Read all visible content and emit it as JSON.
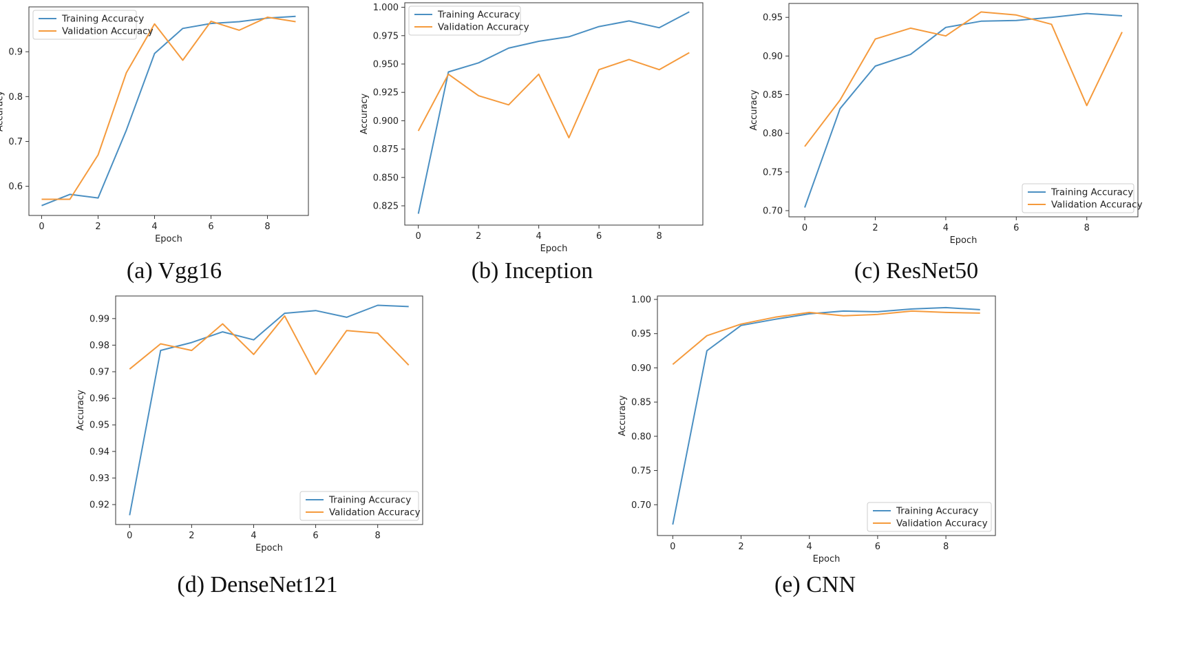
{
  "colors": {
    "training": "#4a8fc2",
    "validation": "#f59a3c",
    "axis": "#333333",
    "legend_border": "#cccccc"
  },
  "chart_data": [
    {
      "id": "vgg16",
      "type": "line",
      "caption": "(a) Vgg16",
      "xlabel": "Epoch",
      "ylabel": "Accuracy",
      "xlim": [
        -0.45,
        9.45
      ],
      "ylim": [
        0.535,
        1.0
      ],
      "xticks": [
        0,
        2,
        4,
        6,
        8
      ],
      "xtick_labels": [
        "0",
        "2",
        "4",
        "6",
        "8"
      ],
      "yticks": [
        0.6,
        0.7,
        0.8,
        0.9
      ],
      "ytick_labels": [
        "0.6",
        "0.7",
        "0.8",
        "0.9"
      ],
      "legend_loc": "upper-left",
      "x": [
        0,
        1,
        2,
        3,
        4,
        5,
        6,
        7,
        8,
        9
      ],
      "series": [
        {
          "name": "Training Accuracy",
          "color_key": "training",
          "values": [
            0.557,
            0.582,
            0.574,
            0.725,
            0.896,
            0.952,
            0.963,
            0.967,
            0.975,
            0.979
          ]
        },
        {
          "name": "Validation Accuracy",
          "color_key": "validation",
          "values": [
            0.571,
            0.571,
            0.67,
            0.853,
            0.962,
            0.881,
            0.968,
            0.948,
            0.977,
            0.967
          ]
        }
      ]
    },
    {
      "id": "inception",
      "type": "line",
      "caption": "(b) Inception",
      "xlabel": "Epoch",
      "ylabel": "Accuracy",
      "xlim": [
        -0.45,
        9.45
      ],
      "ylim": [
        0.808,
        1.004
      ],
      "xticks": [
        0,
        2,
        4,
        6,
        8
      ],
      "xtick_labels": [
        "0",
        "2",
        "4",
        "6",
        "8"
      ],
      "yticks": [
        0.825,
        0.85,
        0.875,
        0.9,
        0.925,
        0.95,
        0.975,
        1.0
      ],
      "ytick_labels": [
        "0.825",
        "0.850",
        "0.875",
        "0.900",
        "0.925",
        "0.950",
        "0.975",
        "1.000"
      ],
      "legend_loc": "upper-left",
      "x": [
        0,
        1,
        2,
        3,
        4,
        5,
        6,
        7,
        8,
        9
      ],
      "series": [
        {
          "name": "Training Accuracy",
          "color_key": "training",
          "values": [
            0.818,
            0.943,
            0.951,
            0.964,
            0.97,
            0.974,
            0.983,
            0.988,
            0.982,
            0.996
          ]
        },
        {
          "name": "Validation Accuracy",
          "color_key": "validation",
          "values": [
            0.891,
            0.941,
            0.922,
            0.914,
            0.941,
            0.885,
            0.945,
            0.954,
            0.945,
            0.96
          ]
        }
      ]
    },
    {
      "id": "resnet50",
      "type": "line",
      "caption": "(c) ResNet50",
      "xlabel": "Epoch",
      "ylabel": "Accuracy",
      "xlim": [
        -0.45,
        9.45
      ],
      "ylim": [
        0.692,
        0.968
      ],
      "xticks": [
        0,
        2,
        4,
        6,
        8
      ],
      "xtick_labels": [
        "0",
        "2",
        "4",
        "6",
        "8"
      ],
      "yticks": [
        0.7,
        0.75,
        0.8,
        0.85,
        0.9,
        0.95
      ],
      "ytick_labels": [
        "0.70",
        "0.75",
        "0.80",
        "0.85",
        "0.90",
        "0.95"
      ],
      "legend_loc": "lower-right",
      "x": [
        0,
        1,
        2,
        3,
        4,
        5,
        6,
        7,
        8,
        9
      ],
      "series": [
        {
          "name": "Training Accuracy",
          "color_key": "training",
          "values": [
            0.704,
            0.832,
            0.887,
            0.902,
            0.937,
            0.945,
            0.946,
            0.95,
            0.955,
            0.952
          ]
        },
        {
          "name": "Validation Accuracy",
          "color_key": "validation",
          "values": [
            0.783,
            0.843,
            0.922,
            0.936,
            0.926,
            0.957,
            0.953,
            0.941,
            0.836,
            0.931
          ]
        }
      ]
    },
    {
      "id": "densenet121",
      "type": "line",
      "caption": "(d) DenseNet121",
      "xlabel": "Epoch",
      "ylabel": "Accuracy",
      "xlim": [
        -0.45,
        9.45
      ],
      "ylim": [
        0.9125,
        0.9985
      ],
      "xticks": [
        0,
        2,
        4,
        6,
        8
      ],
      "xtick_labels": [
        "0",
        "2",
        "4",
        "6",
        "8"
      ],
      "yticks": [
        0.92,
        0.93,
        0.94,
        0.95,
        0.96,
        0.97,
        0.98,
        0.99
      ],
      "ytick_labels": [
        "0.92",
        "0.93",
        "0.94",
        "0.95",
        "0.96",
        "0.97",
        "0.98",
        "0.99"
      ],
      "legend_loc": "lower-right",
      "x": [
        0,
        1,
        2,
        3,
        4,
        5,
        6,
        7,
        8,
        9
      ],
      "series": [
        {
          "name": "Training Accuracy",
          "color_key": "training",
          "values": [
            0.916,
            0.978,
            0.981,
            0.985,
            0.982,
            0.992,
            0.993,
            0.9905,
            0.995,
            0.9945
          ]
        },
        {
          "name": "Validation Accuracy",
          "color_key": "validation",
          "values": [
            0.971,
            0.9805,
            0.978,
            0.988,
            0.9765,
            0.991,
            0.969,
            0.9855,
            0.9845,
            0.9725
          ]
        }
      ]
    },
    {
      "id": "cnn",
      "type": "line",
      "caption": "(e) CNN",
      "xlabel": "Epoch",
      "ylabel": "Accuracy",
      "xlim": [
        -0.45,
        9.45
      ],
      "ylim": [
        0.655,
        1.005
      ],
      "xticks": [
        0,
        2,
        4,
        6,
        8
      ],
      "xtick_labels": [
        "0",
        "2",
        "4",
        "6",
        "8"
      ],
      "yticks": [
        0.7,
        0.75,
        0.8,
        0.85,
        0.9,
        0.95,
        1.0
      ],
      "ytick_labels": [
        "0.70",
        "0.75",
        "0.80",
        "0.85",
        "0.90",
        "0.95",
        "1.00"
      ],
      "legend_loc": "lower-right",
      "x": [
        0,
        1,
        2,
        3,
        4,
        5,
        6,
        7,
        8,
        9
      ],
      "series": [
        {
          "name": "Training Accuracy",
          "color_key": "training",
          "values": [
            0.671,
            0.925,
            0.962,
            0.971,
            0.979,
            0.983,
            0.982,
            0.986,
            0.988,
            0.985
          ]
        },
        {
          "name": "Validation Accuracy",
          "color_key": "validation",
          "values": [
            0.905,
            0.947,
            0.964,
            0.974,
            0.981,
            0.976,
            0.978,
            0.983,
            0.981,
            0.98
          ]
        }
      ]
    }
  ]
}
